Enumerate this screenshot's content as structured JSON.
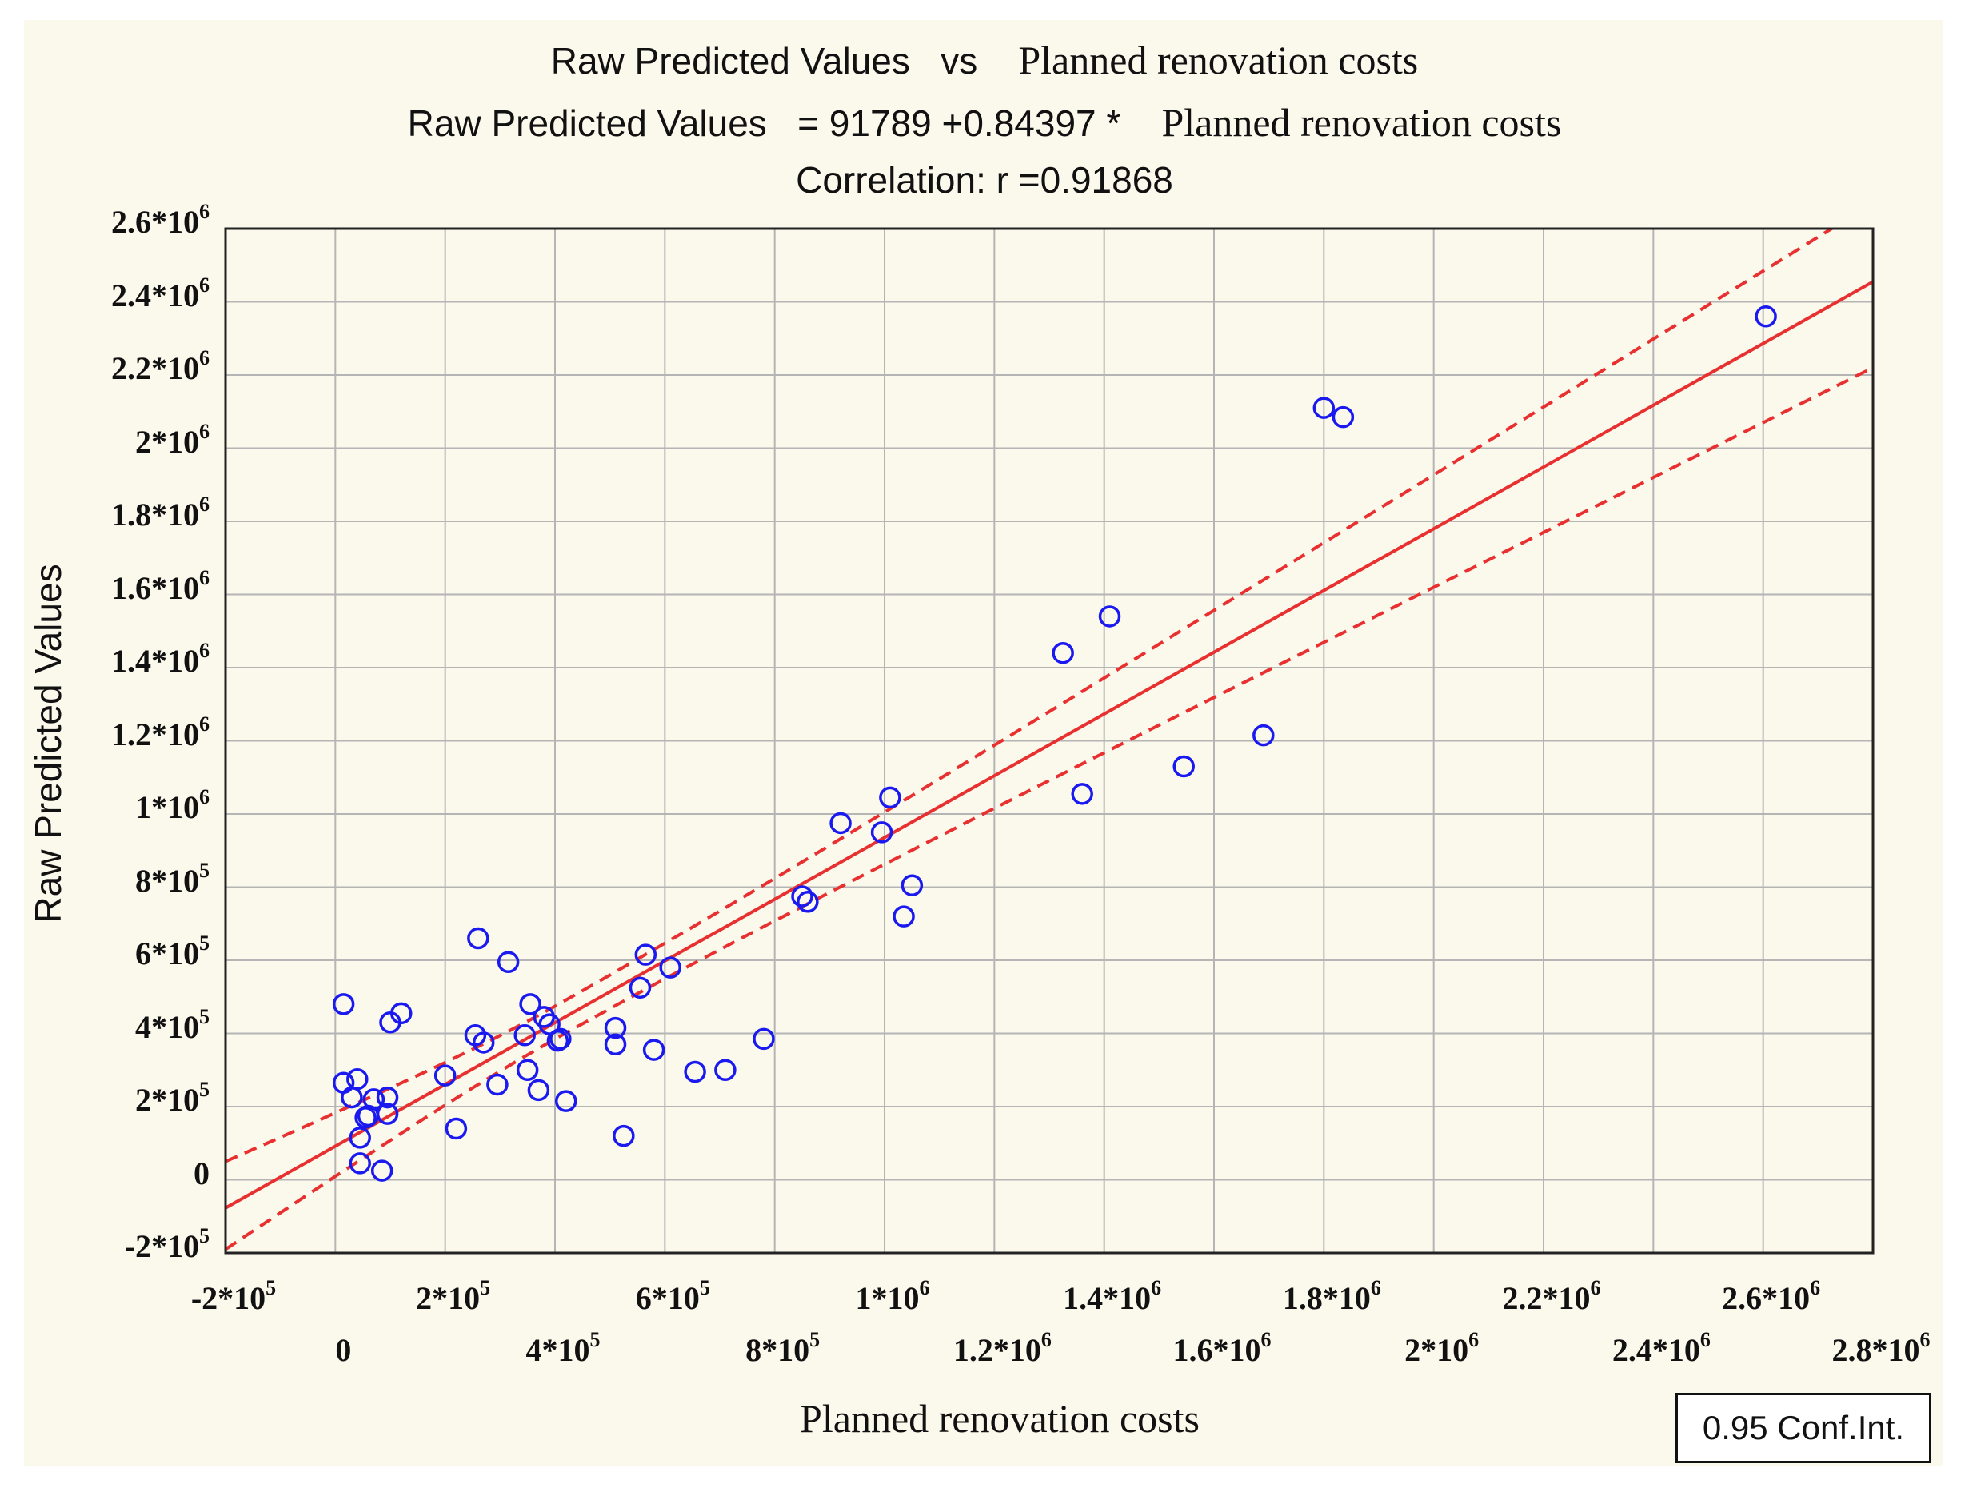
{
  "chart_data": {
    "type": "scatter",
    "title_line1_left": "Raw Predicted Values",
    "title_line1_vs": "vs",
    "title_line1_right": "Planned renovation costs",
    "title_line2_left": "Raw Predicted Values   = 91789",
    "title_line2_mid": " +0.84397 *",
    "title_line2_right": "Planned renovation costs",
    "title_line3": "Correlation: r =0.91868",
    "xlabel": "Planned renovation costs",
    "ylabel": "Raw Predicted Values",
    "xlim": [
      -200000,
      2800000
    ],
    "ylim": [
      -200000,
      2600000
    ],
    "regression": {
      "intercept": 91789,
      "slope": 0.84397
    },
    "conf_band": {
      "upper_at_xmin": 50000,
      "upper_at_xmax": 2670000,
      "lower_at_xmin": -190000,
      "lower_at_xmax": 2220000
    },
    "legend": "0.95 Conf.Int.",
    "colors": {
      "points": "#1a1af0",
      "line": "#e83030",
      "grid": "#b5b5b5",
      "frame": "#222222"
    },
    "y_ticks": [
      {
        "value": 2600000,
        "base": "2.6*10",
        "exp": "6"
      },
      {
        "value": 2400000,
        "base": "2.4*10",
        "exp": "6"
      },
      {
        "value": 2200000,
        "base": "2.2*10",
        "exp": "6"
      },
      {
        "value": 2000000,
        "base": "2*10",
        "exp": "6"
      },
      {
        "value": 1800000,
        "base": "1.8*10",
        "exp": "6"
      },
      {
        "value": 1600000,
        "base": "1.6*10",
        "exp": "6"
      },
      {
        "value": 1400000,
        "base": "1.4*10",
        "exp": "6"
      },
      {
        "value": 1200000,
        "base": "1.2*10",
        "exp": "6"
      },
      {
        "value": 1000000,
        "base": "1*10",
        "exp": "6"
      },
      {
        "value": 800000,
        "base": "8*10",
        "exp": "5"
      },
      {
        "value": 600000,
        "base": "6*10",
        "exp": "5"
      },
      {
        "value": 400000,
        "base": "4*10",
        "exp": "5"
      },
      {
        "value": 200000,
        "base": "2*10",
        "exp": "5"
      },
      {
        "value": 0,
        "base": "0",
        "exp": ""
      },
      {
        "value": -200000,
        "base": "-2*10",
        "exp": "5"
      }
    ],
    "x_ticks_upper": [
      {
        "value": -200000,
        "base": "-2*10",
        "exp": "5"
      },
      {
        "value": 200000,
        "base": "2*10",
        "exp": "5"
      },
      {
        "value": 600000,
        "base": "6*10",
        "exp": "5"
      },
      {
        "value": 1000000,
        "base": "1*10",
        "exp": "6"
      },
      {
        "value": 1400000,
        "base": "1.4*10",
        "exp": "6"
      },
      {
        "value": 1800000,
        "base": "1.8*10",
        "exp": "6"
      },
      {
        "value": 2200000,
        "base": "2.2*10",
        "exp": "6"
      },
      {
        "value": 2600000,
        "base": "2.6*10",
        "exp": "6"
      }
    ],
    "x_ticks_lower": [
      {
        "value": 0,
        "base": "0",
        "exp": ""
      },
      {
        "value": 400000,
        "base": "4*10",
        "exp": "5"
      },
      {
        "value": 800000,
        "base": "8*10",
        "exp": "5"
      },
      {
        "value": 1200000,
        "base": "1.2*10",
        "exp": "6"
      },
      {
        "value": 1600000,
        "base": "1.6*10",
        "exp": "6"
      },
      {
        "value": 2000000,
        "base": "2*10",
        "exp": "6"
      },
      {
        "value": 2400000,
        "base": "2.4*10",
        "exp": "6"
      },
      {
        "value": 2800000,
        "base": "2.8*10",
        "exp": "6"
      }
    ],
    "points": [
      {
        "x": 15000,
        "y": 480000
      },
      {
        "x": 15000,
        "y": 265000
      },
      {
        "x": 30000,
        "y": 225000
      },
      {
        "x": 40000,
        "y": 275000
      },
      {
        "x": 45000,
        "y": 115000
      },
      {
        "x": 45000,
        "y": 45000
      },
      {
        "x": 55000,
        "y": 170000
      },
      {
        "x": 60000,
        "y": 175000
      },
      {
        "x": 70000,
        "y": 220000
      },
      {
        "x": 85000,
        "y": 25000
      },
      {
        "x": 95000,
        "y": 180000
      },
      {
        "x": 95000,
        "y": 225000
      },
      {
        "x": 100000,
        "y": 430000
      },
      {
        "x": 120000,
        "y": 455000
      },
      {
        "x": 200000,
        "y": 285000
      },
      {
        "x": 220000,
        "y": 140000
      },
      {
        "x": 255000,
        "y": 395000
      },
      {
        "x": 260000,
        "y": 660000
      },
      {
        "x": 270000,
        "y": 375000
      },
      {
        "x": 295000,
        "y": 260000
      },
      {
        "x": 315000,
        "y": 595000
      },
      {
        "x": 345000,
        "y": 395000
      },
      {
        "x": 350000,
        "y": 300000
      },
      {
        "x": 355000,
        "y": 480000
      },
      {
        "x": 370000,
        "y": 245000
      },
      {
        "x": 380000,
        "y": 445000
      },
      {
        "x": 390000,
        "y": 425000
      },
      {
        "x": 405000,
        "y": 380000
      },
      {
        "x": 410000,
        "y": 385000
      },
      {
        "x": 420000,
        "y": 215000
      },
      {
        "x": 510000,
        "y": 415000
      },
      {
        "x": 510000,
        "y": 370000
      },
      {
        "x": 525000,
        "y": 120000
      },
      {
        "x": 555000,
        "y": 525000
      },
      {
        "x": 565000,
        "y": 615000
      },
      {
        "x": 580000,
        "y": 355000
      },
      {
        "x": 610000,
        "y": 580000
      },
      {
        "x": 655000,
        "y": 295000
      },
      {
        "x": 710000,
        "y": 300000
      },
      {
        "x": 780000,
        "y": 385000
      },
      {
        "x": 850000,
        "y": 775000
      },
      {
        "x": 860000,
        "y": 760000
      },
      {
        "x": 920000,
        "y": 975000
      },
      {
        "x": 995000,
        "y": 950000
      },
      {
        "x": 1010000,
        "y": 1045000
      },
      {
        "x": 1035000,
        "y": 720000
      },
      {
        "x": 1050000,
        "y": 805000
      },
      {
        "x": 1325000,
        "y": 1440000
      },
      {
        "x": 1360000,
        "y": 1055000
      },
      {
        "x": 1410000,
        "y": 1540000
      },
      {
        "x": 1545000,
        "y": 1130000
      },
      {
        "x": 1690000,
        "y": 1215000
      },
      {
        "x": 1800000,
        "y": 2110000
      },
      {
        "x": 1835000,
        "y": 2085000
      },
      {
        "x": 2605000,
        "y": 2360000
      }
    ]
  }
}
